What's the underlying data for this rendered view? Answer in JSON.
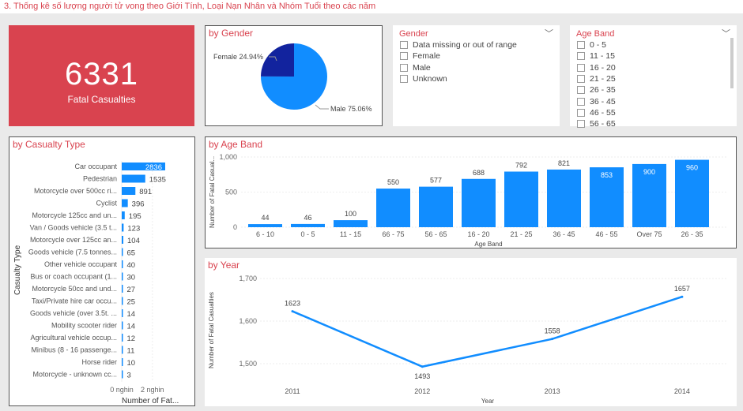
{
  "page_title": "3. Thống kê số lượng người tử vong theo Giới Tính, Loại Nạn Nhân và Nhóm Tuổi theo các năm",
  "kpi": {
    "value": "6331",
    "label": "Fatal Casualties",
    "color": "#d9434f"
  },
  "gender_slicer": {
    "title": "Gender",
    "options": [
      "Data missing or out of range",
      "Female",
      "Male",
      "Unknown"
    ]
  },
  "age_slicer": {
    "title": "Age Band",
    "options": [
      "0 - 5",
      "11 - 15",
      "16 - 20",
      "21 - 25",
      "26 - 35",
      "36 - 45",
      "46 - 55",
      "56 - 65"
    ]
  },
  "chart_data": [
    {
      "id": "gender",
      "type": "pie",
      "title": "by Gender",
      "slices": [
        {
          "label": "Female 24.94%",
          "name": "Female",
          "value": 24.94,
          "color": "#12239e"
        },
        {
          "label": "Male 75.06%",
          "name": "Male",
          "value": 75.06,
          "color": "#118dff"
        }
      ]
    },
    {
      "id": "casualty",
      "type": "bar",
      "orientation": "horizontal",
      "title": "by Casualty Type",
      "ylabel": "Casualty Type",
      "xlabel": "Number of Fat...",
      "xticks": [
        "0 nghin",
        "2 nghin"
      ],
      "color": "#118dff",
      "categories": [
        "Car occupant",
        "Pedestrian",
        "Motorcycle over 500cc ri...",
        "Cyclist",
        "Motorcycle 125cc and un...",
        "Van / Goods vehicle (3.5 t...",
        "Motorcycle over 125cc an...",
        "Goods vehicle (7.5 tonnes...",
        "Other vehicle occupant",
        "Bus or coach occupant (1...",
        "Motorcycle 50cc and und...",
        "Taxi/Private hire car occu...",
        "Goods vehicle (over 3.5t. ...",
        "Mobility scooter rider",
        "Agricultural vehicle occup...",
        "Minibus (8 - 16 passenge...",
        "Horse rider",
        "Motorcycle - unknown cc..."
      ],
      "values": [
        2836,
        1535,
        891,
        396,
        195,
        123,
        104,
        65,
        40,
        30,
        27,
        25,
        14,
        14,
        12,
        11,
        10,
        3
      ]
    },
    {
      "id": "age",
      "type": "bar",
      "title": "by Age Band",
      "xlabel": "Age Band",
      "ylabel": "Number of Fatal Casual...",
      "ylim": [
        0,
        1000
      ],
      "yticks": [
        "0",
        "500",
        "1,000"
      ],
      "color": "#118dff",
      "categories": [
        "6 - 10",
        "0 - 5",
        "11 - 15",
        "66 - 75",
        "56 - 65",
        "16 - 20",
        "21 - 25",
        "36 - 45",
        "46 - 55",
        "Over 75",
        "26 - 35"
      ],
      "values": [
        44,
        46,
        100,
        550,
        577,
        688,
        792,
        821,
        853,
        900,
        960
      ]
    },
    {
      "id": "year",
      "type": "line",
      "title": "by Year",
      "xlabel": "Year",
      "ylabel": "Number of Fatal Casualties",
      "ylim": [
        1480,
        1700
      ],
      "yticks": [
        "1,500",
        "1,600",
        "1,700"
      ],
      "color": "#118dff",
      "categories": [
        "2011",
        "2012",
        "2013",
        "2014"
      ],
      "values": [
        1623,
        1493,
        1558,
        1657
      ]
    }
  ]
}
